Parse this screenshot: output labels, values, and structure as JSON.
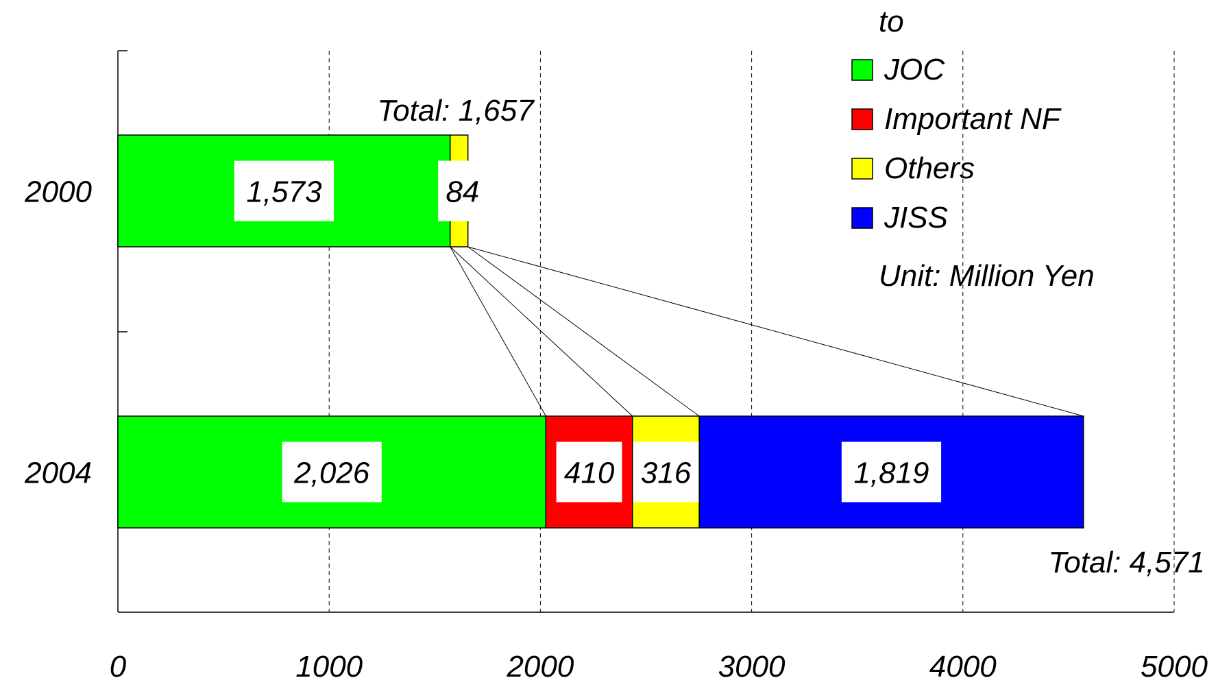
{
  "chart_data": {
    "type": "bar",
    "orientation": "horizontal",
    "stacked": true,
    "categories": [
      "2000",
      "2004"
    ],
    "series": [
      {
        "name": "JOC",
        "color": "#00ff00",
        "values": [
          1573,
          2026
        ],
        "labels": [
          "1,573",
          "2,026"
        ]
      },
      {
        "name": "Important NF",
        "color": "#ff0000",
        "values": [
          0,
          410
        ],
        "labels": [
          "",
          "410"
        ]
      },
      {
        "name": "Others",
        "color": "#ffff00",
        "values": [
          84,
          316
        ],
        "labels": [
          "84",
          "316"
        ]
      },
      {
        "name": "JISS",
        "color": "#0000ff",
        "values": [
          0,
          1819
        ],
        "labels": [
          "",
          "1,819"
        ]
      }
    ],
    "totals": [
      "Total: 1,657",
      "Total: 4,571"
    ],
    "total_values": [
      1657,
      4571
    ],
    "xlim": [
      0,
      5000
    ],
    "xticks": [
      "0",
      "1000",
      "2000",
      "3000",
      "4000",
      "5000"
    ],
    "grid": "vertical dashed",
    "legend_title": "to",
    "legend_position": "top-right",
    "unit": "Unit: Million Yen",
    "connector_lines": true
  }
}
